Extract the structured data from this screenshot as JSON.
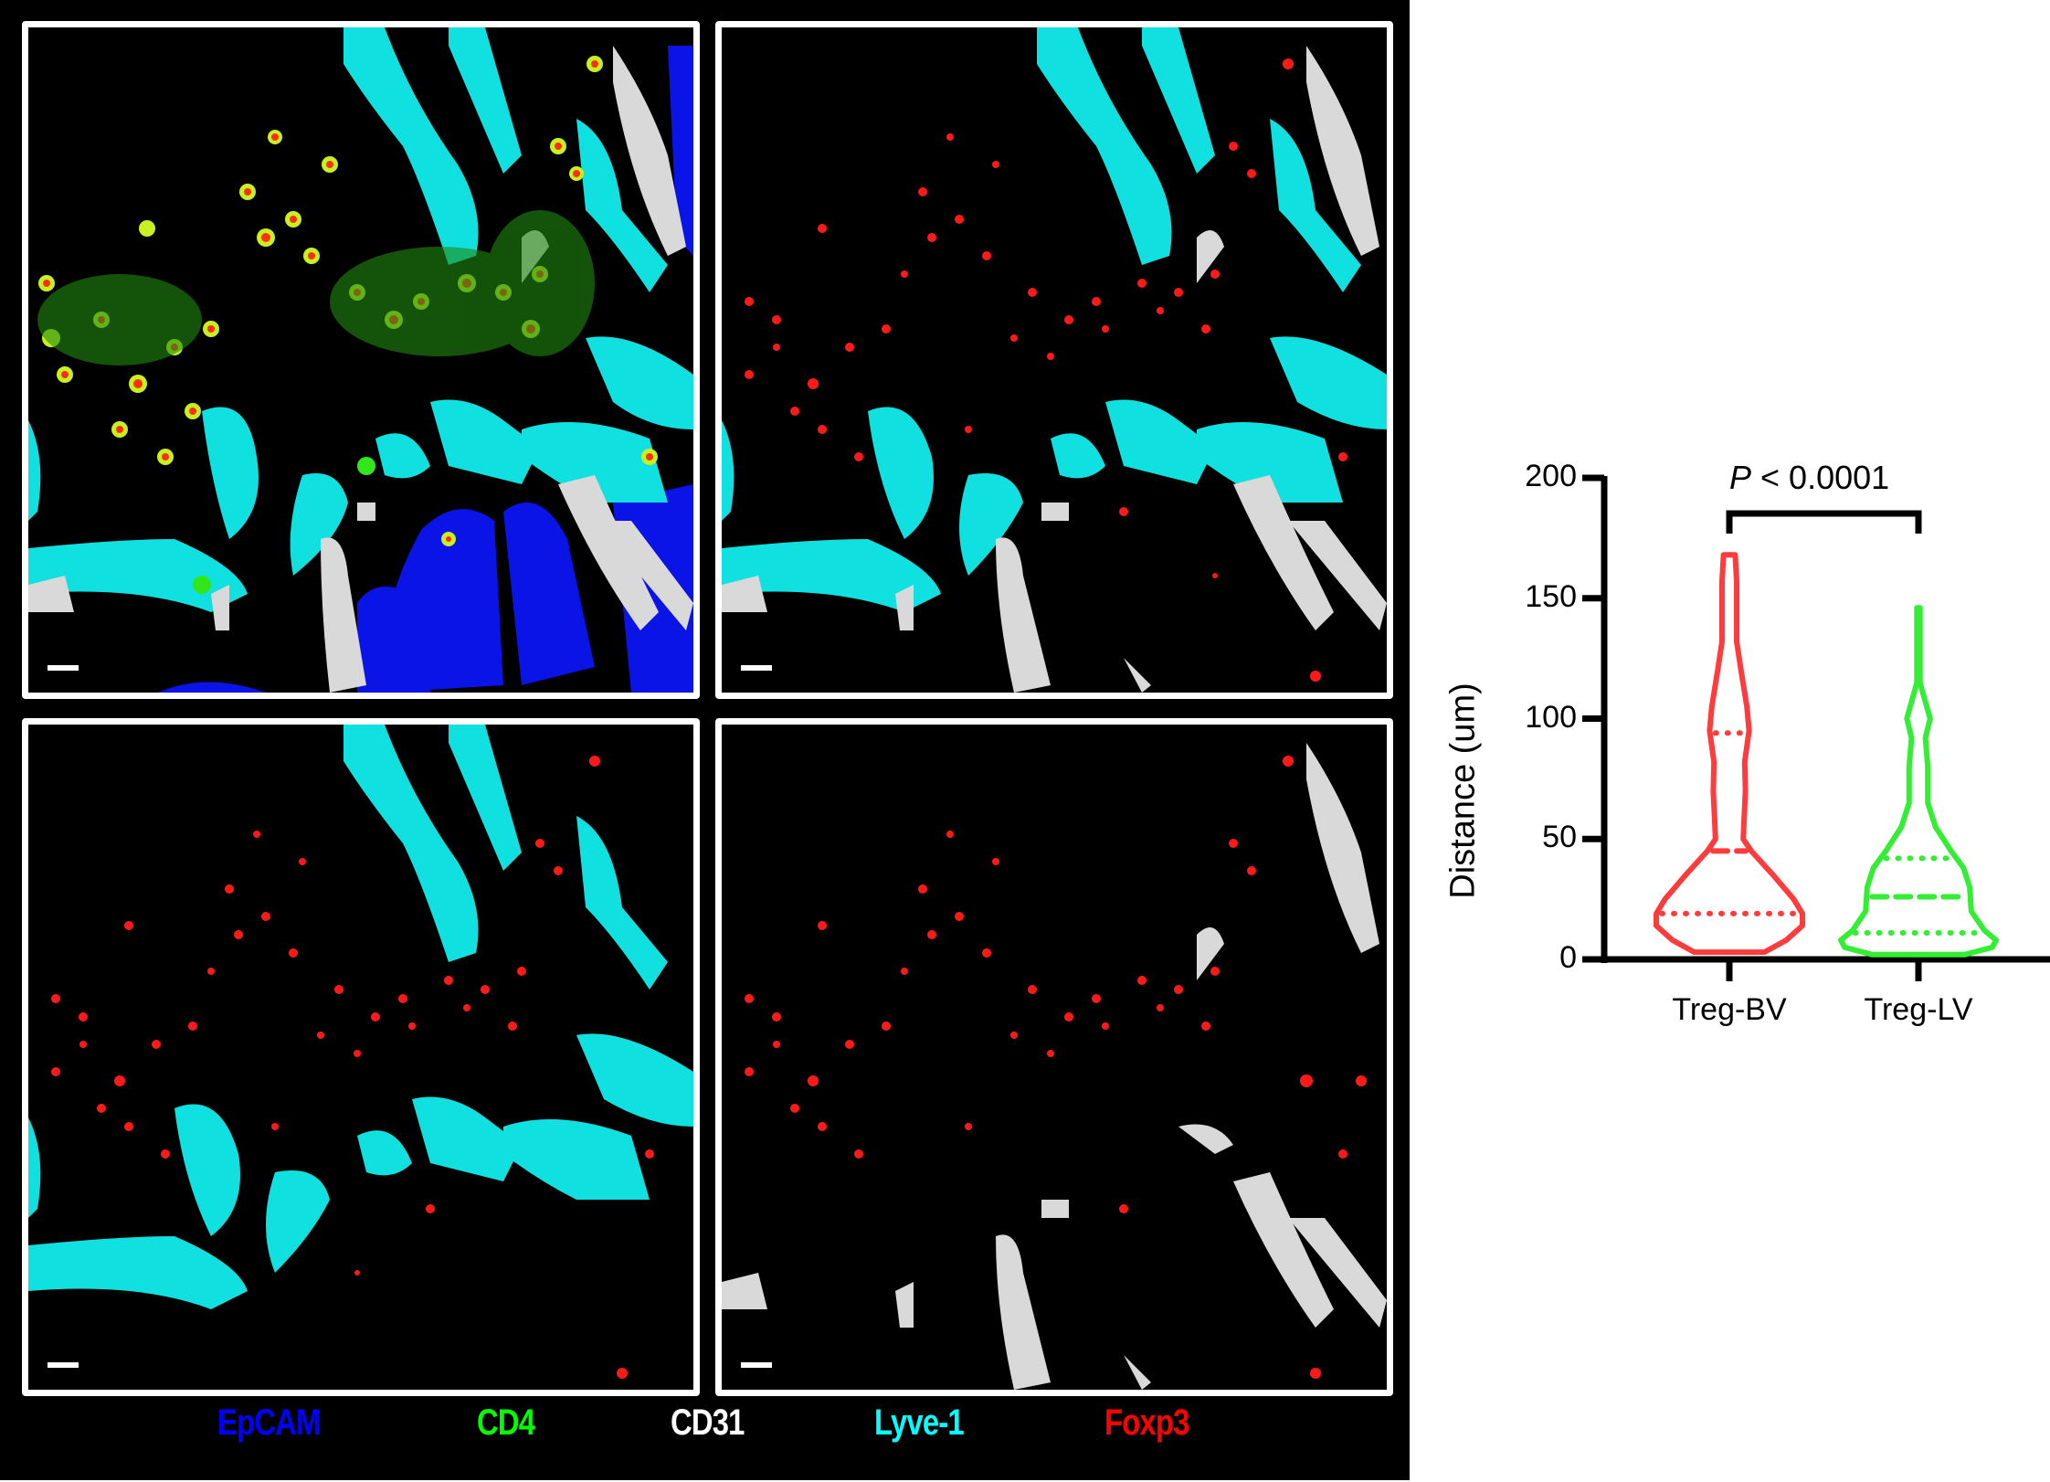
{
  "figure": {
    "panels": [
      {
        "id": "merge",
        "channels": [
          "EpCAM",
          "CD4",
          "CD31",
          "Lyve-1",
          "Foxp3"
        ],
        "scale_bar": true
      },
      {
        "id": "cd31-lyve1-foxp3",
        "channels": [
          "CD31",
          "Lyve-1",
          "Foxp3"
        ],
        "scale_bar": true
      },
      {
        "id": "lyve1-foxp3",
        "channels": [
          "Lyve-1",
          "Foxp3"
        ],
        "scale_bar": true
      },
      {
        "id": "cd31-foxp3",
        "channels": [
          "CD31",
          "Foxp3"
        ],
        "scale_bar": true
      }
    ],
    "legend": [
      {
        "label": "EpCAM",
        "color": "#0000FF"
      },
      {
        "label": "CD4",
        "color": "#00FF00"
      },
      {
        "label": "CD31",
        "color": "#FFFFFF"
      },
      {
        "label": "Lyve-1",
        "color": "#00FFFF"
      },
      {
        "label": "Foxp3",
        "color": "#FF0000"
      }
    ],
    "colors": {
      "epcam": "#0a14e6",
      "cd4": "#33e61a",
      "cd31": "#d9d9d9",
      "lyve1": "#11e0e0",
      "foxp3": "#ff1a1a",
      "background": "#000000",
      "panel_border": "#FFFFFF"
    }
  },
  "chart_data": {
    "type": "violin",
    "title": "",
    "xlabel": "",
    "ylabel": "Distance (um)",
    "ylim": [
      0,
      200
    ],
    "yticks": [
      0,
      50,
      100,
      150,
      200
    ],
    "categories": [
      "Treg-BV",
      "Treg-LV"
    ],
    "annotation": {
      "text_italic": "P",
      "text": " < 0.0001",
      "bracket_between": [
        "Treg-BV",
        "Treg-LV"
      ]
    },
    "grid": false,
    "legend": null,
    "series": [
      {
        "name": "Treg-BV",
        "color": "#FF3B3B",
        "min": 3,
        "max": 168,
        "q1": 19,
        "median": 45,
        "q3": 94,
        "density_profile": [
          [
            3,
            0.48
          ],
          [
            8,
            0.78
          ],
          [
            14,
            1.0
          ],
          [
            19,
            1.0
          ],
          [
            25,
            0.88
          ],
          [
            35,
            0.6
          ],
          [
            45,
            0.3
          ],
          [
            50,
            0.19
          ],
          [
            57,
            0.2
          ],
          [
            70,
            0.22
          ],
          [
            82,
            0.21
          ],
          [
            95,
            0.27
          ],
          [
            105,
            0.24
          ],
          [
            120,
            0.16
          ],
          [
            132,
            0.1
          ],
          [
            145,
            0.1
          ],
          [
            157,
            0.1
          ],
          [
            168,
            0.08
          ]
        ]
      },
      {
        "name": "Treg-LV",
        "color": "#33EE33",
        "min": 2,
        "max": 146,
        "q1": 11,
        "median": 26,
        "q3": 42,
        "density_profile": [
          [
            2,
            0.6
          ],
          [
            5,
            0.95
          ],
          [
            8,
            1.0
          ],
          [
            12,
            0.85
          ],
          [
            20,
            0.68
          ],
          [
            30,
            0.66
          ],
          [
            38,
            0.58
          ],
          [
            45,
            0.42
          ],
          [
            55,
            0.22
          ],
          [
            65,
            0.12
          ],
          [
            80,
            0.12
          ],
          [
            92,
            0.09
          ],
          [
            100,
            0.15
          ],
          [
            108,
            0.08
          ],
          [
            115,
            0.02
          ],
          [
            130,
            0.02
          ],
          [
            146,
            0.02
          ]
        ]
      }
    ]
  }
}
